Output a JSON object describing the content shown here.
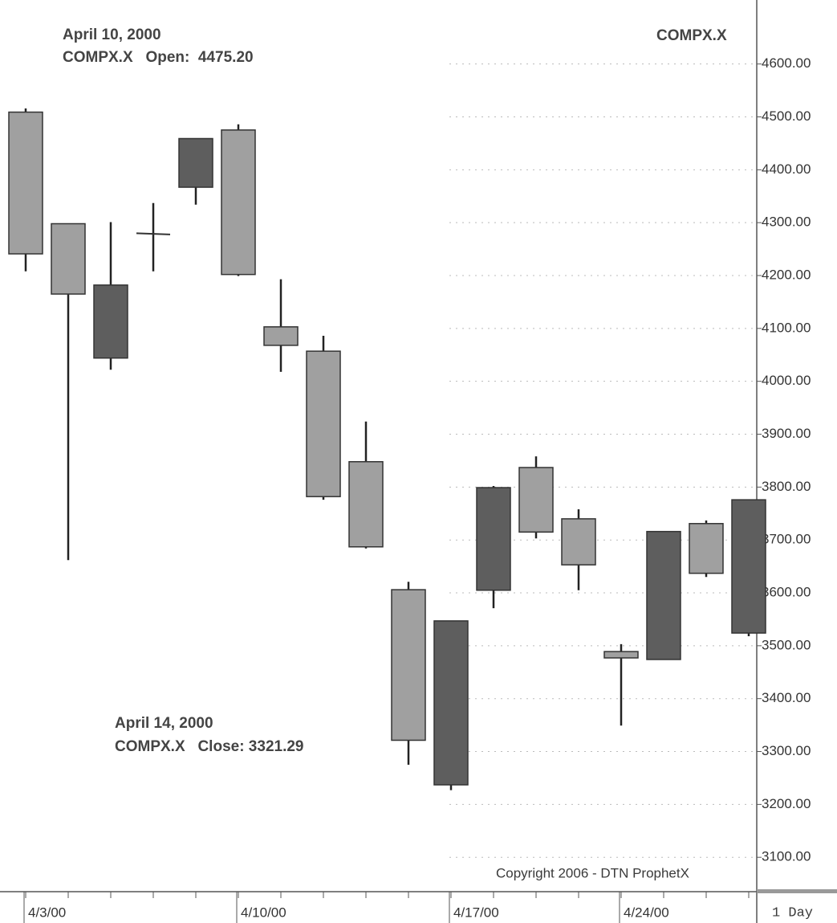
{
  "chart_data": {
    "type": "candlestick",
    "title": "COMPX.X",
    "categories": [
      "4/3/00",
      null,
      null,
      null,
      null,
      "4/10/00",
      null,
      null,
      null,
      null,
      "4/17/00",
      null,
      null,
      null,
      "4/24/00",
      null,
      null,
      null
    ],
    "open": [
      4509,
      4298,
      4044,
      4279,
      4367,
      4475.2,
      4103,
      4057,
      3848,
      3606,
      3237,
      3605,
      3837,
      3740,
      3489,
      3474,
      3731,
      3524
    ],
    "high": [
      4516,
      4298,
      4301,
      4337,
      4459,
      4486,
      4193,
      4086,
      3924,
      3621,
      3547,
      3802,
      3858,
      3758,
      3503,
      3716,
      3737,
      3776
    ],
    "low": [
      4208,
      3662,
      4022,
      4208,
      4334,
      4199,
      4018,
      3776,
      3684,
      3275,
      3227,
      3571,
      3703,
      3605,
      3349,
      3474,
      3630,
      3518
    ],
    "close": [
      4241,
      4165,
      4182,
      4280,
      4459,
      4202,
      4068,
      3782,
      3687,
      3321.29,
      3547,
      3799,
      3715,
      3653,
      3477,
      3716,
      3637,
      3776
    ],
    "up_color": "#5e5e5e",
    "down_color": "#a0a0a0",
    "ylim": [
      3035,
      4721
    ],
    "yticks": [
      {
        "value": 3100,
        "label": "3100.00"
      },
      {
        "value": 3200,
        "label": "3200.00"
      },
      {
        "value": 3300,
        "label": "3300.00"
      },
      {
        "value": 3400,
        "label": "3400.00"
      },
      {
        "value": 3500,
        "label": "3500.00"
      },
      {
        "value": 3600,
        "label": "3600.00"
      },
      {
        "value": 3700,
        "label": "3700.00"
      },
      {
        "value": 3800,
        "label": "3800.00"
      },
      {
        "value": 3900,
        "label": "3900.00"
      },
      {
        "value": 4000,
        "label": "4000.00"
      },
      {
        "value": 4100,
        "label": "4100.00"
      },
      {
        "value": 4200,
        "label": "4200.00"
      },
      {
        "value": 4300,
        "label": "4300.00"
      },
      {
        "value": 4400,
        "label": "4400.00"
      },
      {
        "value": 4500,
        "label": "4500.00"
      },
      {
        "value": 4600,
        "label": "4600.00"
      }
    ],
    "grid": true,
    "annotations": [
      "April 10, 2000",
      "COMPX.X   Open:  4475.20",
      "April 14, 2000",
      "COMPX.X   Close: 3321.29",
      "Copyright 2006 - DTN ProphetX",
      "1 Day"
    ]
  }
}
